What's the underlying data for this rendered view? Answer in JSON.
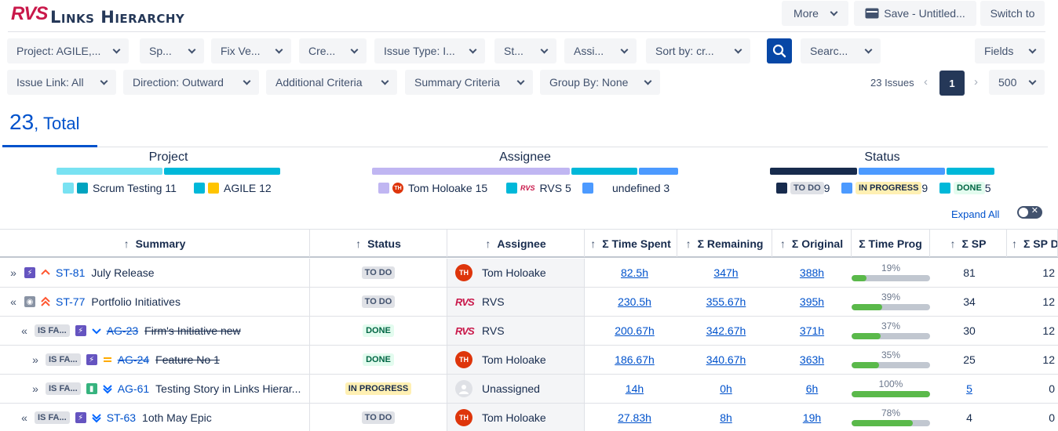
{
  "app": {
    "logo": "RVS",
    "title": "Links Hierarchy"
  },
  "header": {
    "more": "More",
    "save": "Save - Untitled...",
    "switch": "Switch to"
  },
  "filters": {
    "row1": [
      "Project: AGILE,...",
      "Sp...",
      "Fix Ve...",
      "Cre...",
      "Issue Type: I...",
      "St...",
      "Assi...",
      "Sort by: cr...",
      "Searc...",
      "Fields"
    ],
    "row2": [
      "Issue Link: All",
      "Direction: Outward",
      "Additional Criteria",
      "Summary Criteria",
      "Group By: None"
    ]
  },
  "pager": {
    "count": "23 Issues",
    "page": "1",
    "per_page": "500"
  },
  "total": {
    "number": "23",
    "label": ", Total"
  },
  "groups": {
    "project": {
      "title": "Project",
      "items": [
        {
          "label": "Scrum Testing",
          "count": "11"
        },
        {
          "label": "AGILE",
          "count": "12"
        }
      ]
    },
    "assignee": {
      "title": "Assignee",
      "items": [
        {
          "label": "Tom Holoake",
          "count": "15",
          "initials": "TH"
        },
        {
          "label": "RVS",
          "count": "5"
        },
        {
          "label": "undefined",
          "count": "3"
        }
      ]
    },
    "status": {
      "title": "Status",
      "items": [
        {
          "label": "TO DO",
          "count": "9"
        },
        {
          "label": "IN PROGRESS",
          "count": "9"
        },
        {
          "label": "DONE",
          "count": "5"
        }
      ]
    }
  },
  "expand_all": "Expand All",
  "toggle_x": "✕",
  "columns": [
    "Summary",
    "Status",
    "Assignee",
    "Σ Time Spent",
    "Σ Remaining",
    "Σ Original",
    "Σ Time Prog",
    "Σ SP",
    "Σ SP D"
  ],
  "rows": [
    {
      "expander": "»",
      "link": "",
      "key": "ST-81",
      "summary": "July Release",
      "status": "TO DO",
      "assignee": "Tom Holoake",
      "spent": "82.5h",
      "remaining": "347h",
      "original": "388h",
      "prog": "19%",
      "prog_value": 19,
      "sp": "81",
      "spd": "12"
    },
    {
      "expander": "«",
      "link": "",
      "key": "ST-77",
      "summary": "Portfolio Initiatives",
      "status": "TO DO",
      "assignee": "RVS",
      "spent": "230.5h",
      "remaining": "355.67h",
      "original": "395h",
      "prog": "39%",
      "prog_value": 39,
      "sp": "34",
      "spd": "12"
    },
    {
      "expander": "«",
      "link": "IS FA...",
      "key": "AG-23",
      "summary": "Firm's Initiative new",
      "status": "DONE",
      "assignee": "RVS",
      "spent": "200.67h",
      "remaining": "342.67h",
      "original": "371h",
      "prog": "37%",
      "prog_value": 37,
      "sp": "30",
      "spd": "12"
    },
    {
      "expander": "»",
      "link": "IS FA...",
      "key": "AG-24",
      "summary": "Feature No 1",
      "status": "DONE",
      "assignee": "Tom Holoake",
      "spent": "186.67h",
      "remaining": "340.67h",
      "original": "363h",
      "prog": "35%",
      "prog_value": 35,
      "sp": "25",
      "spd": "12"
    },
    {
      "expander": "»",
      "link": "IS FA...",
      "key": "AG-61",
      "summary": "Testing Story in Links Hierar...",
      "status": "IN PROGRESS",
      "assignee": "Unassigned",
      "spent": "14h",
      "remaining": "0h",
      "original": "6h",
      "prog": "100%",
      "prog_value": 100,
      "sp": "5",
      "spd": "0"
    },
    {
      "expander": "«",
      "link": "IS FA...",
      "key": "ST-63",
      "summary": "1oth May Epic",
      "status": "TO DO",
      "assignee": "Tom Holoake",
      "spent": "27.83h",
      "remaining": "8h",
      "original": "19h",
      "prog": "78%",
      "prog_value": 78,
      "sp": "4",
      "spd": "0"
    }
  ],
  "avatar_initials": "TH",
  "colors": {
    "brand": "#0052cc",
    "progress": "#5ab94a",
    "avatar": "#de350b"
  }
}
